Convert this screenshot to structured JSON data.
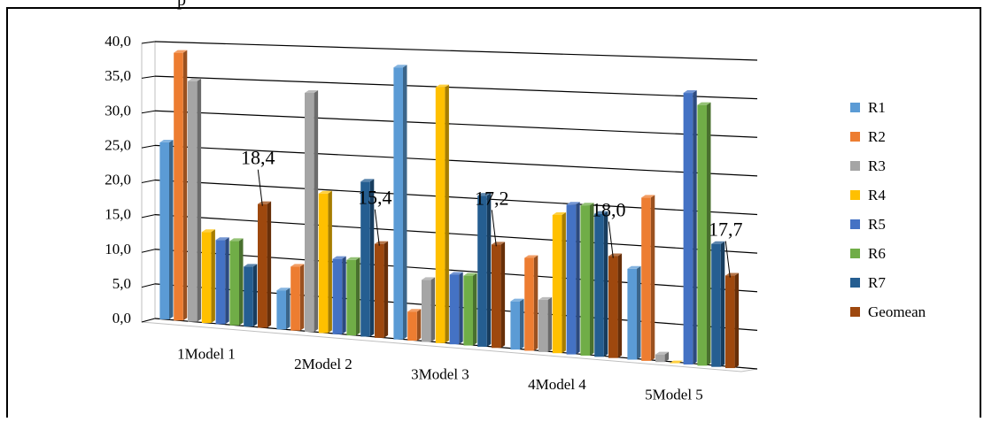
{
  "page": {
    "top_fragment": "p"
  },
  "chart_data": {
    "type": "bar",
    "title": "",
    "xlabel": "",
    "ylabel": "",
    "ylim": [
      0,
      40
    ],
    "yticks": [
      "0,0",
      "5,0",
      "10,0",
      "15,0",
      "20,0",
      "25,0",
      "30,0",
      "35,0",
      "40,0"
    ],
    "grid": true,
    "legend_position": "right",
    "categories": [
      "1Model 1",
      "2Model 2",
      "3Model 3",
      "4Model 4",
      "5Model 5"
    ],
    "series": [
      {
        "name": "R1",
        "color": "#5b9bd5",
        "values": [
          25.5,
          5.5,
          37.5,
          6.5,
          12.0
        ]
      },
      {
        "name": "R2",
        "color": "#ed7d31",
        "values": [
          38.5,
          9.0,
          4.0,
          12.5,
          21.5
        ]
      },
      {
        "name": "R3",
        "color": "#a5a5a5",
        "values": [
          34.5,
          33.5,
          8.5,
          7.0,
          1.0
        ]
      },
      {
        "name": "R4",
        "color": "#ffc000",
        "values": [
          13.0,
          19.5,
          35.0,
          18.5,
          0.0
        ]
      },
      {
        "name": "R5",
        "color": "#4472c4",
        "values": [
          12.0,
          10.5,
          9.5,
          20.0,
          35.5
        ]
      },
      {
        "name": "R6",
        "color": "#70ad47",
        "values": [
          12.0,
          10.5,
          9.5,
          20.0,
          34.0
        ]
      },
      {
        "name": "R7",
        "color": "#255e91",
        "values": [
          8.5,
          21.5,
          20.5,
          19.0,
          16.0
        ]
      },
      {
        "name": "Geomean",
        "color": "#9e480e",
        "values": [
          17.5,
          13.0,
          14.0,
          13.5,
          12.0
        ]
      }
    ],
    "annotations": [
      "18,4",
      "15,4",
      "17,2",
      "18,0",
      "17,7"
    ]
  }
}
